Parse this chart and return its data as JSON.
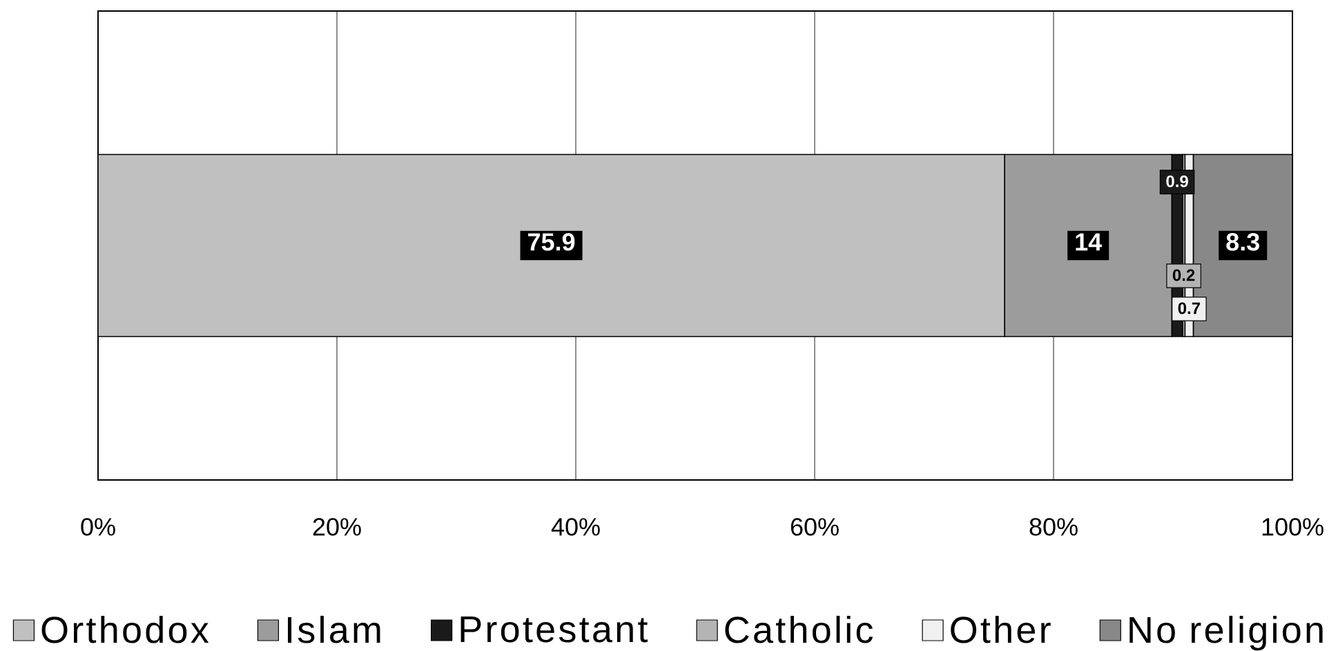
{
  "chart_data": {
    "type": "bar",
    "orientation": "horizontal",
    "stacked": true,
    "categories": [
      null
    ],
    "series": [
      {
        "name": "Orthodox",
        "color": "#c0c0c0",
        "values": [
          75.9
        ]
      },
      {
        "name": "Islam",
        "color": "#9c9c9c",
        "values": [
          14
        ]
      },
      {
        "name": "Protestant",
        "color": "#1a1a1a",
        "values": [
          0.9
        ]
      },
      {
        "name": "Catholic",
        "color": "#b4b4b4",
        "values": [
          0.2
        ]
      },
      {
        "name": "Other",
        "color": "#f0f0f0",
        "values": [
          0.7
        ]
      },
      {
        "name": "No religion",
        "color": "#888888",
        "values": [
          8.3
        ]
      }
    ],
    "xlim": [
      0,
      100
    ],
    "xticks": [
      {
        "value": 0,
        "label": "0%"
      },
      {
        "value": 20,
        "label": "20%"
      },
      {
        "value": 40,
        "label": "40%"
      },
      {
        "value": 60,
        "label": "60%"
      },
      {
        "value": 80,
        "label": "80%"
      },
      {
        "value": 100,
        "label": "100%"
      }
    ],
    "grid": "x",
    "legend": "bottom",
    "data_labels": true
  }
}
